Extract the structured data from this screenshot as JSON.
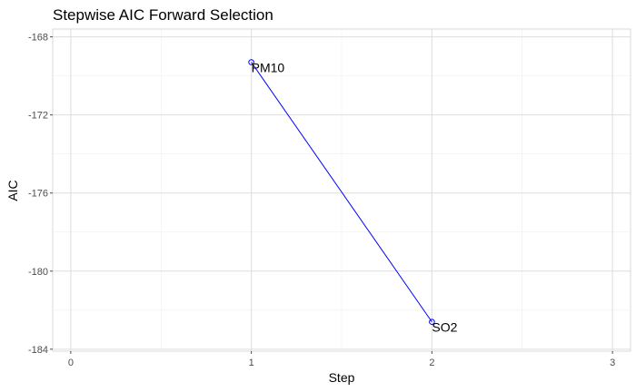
{
  "chart_data": {
    "type": "line",
    "title": "Stepwise AIC Forward Selection",
    "xlabel": "Step",
    "ylabel": "AIC",
    "xlim": [
      -0.1,
      3.1
    ],
    "ylim": [
      -184.1,
      -167.6
    ],
    "x_ticks": [
      0,
      1,
      2,
      3
    ],
    "y_ticks": [
      -168,
      -172,
      -176,
      -180,
      -184
    ],
    "x_tick_labels": [
      "0",
      "1",
      "2",
      "3"
    ],
    "y_tick_labels": [
      "-168",
      "-172",
      "-176",
      "-180",
      "-184"
    ],
    "grid": true,
    "series": [
      {
        "color": "#0000ff",
        "points": [
          {
            "x": 1,
            "y": -169.3,
            "label": "PM10"
          },
          {
            "x": 2,
            "y": -182.6,
            "label": "SO2"
          }
        ]
      }
    ]
  }
}
